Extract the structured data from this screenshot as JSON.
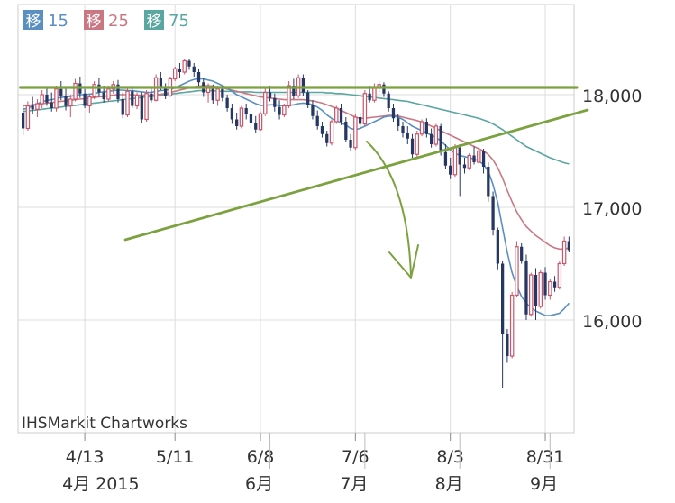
{
  "chart_data": {
    "type": "candlestick",
    "title": "",
    "watermark": "IHSMarkit Chartworks",
    "legend": [
      {
        "badge": "移",
        "label": "15",
        "color": "#5a8fc2"
      },
      {
        "badge": "移",
        "label": "25",
        "color": "#c97883"
      },
      {
        "badge": "移",
        "label": "75",
        "color": "#5aa6a0"
      }
    ],
    "colors": {
      "up": "#c9556a",
      "down": "#263764",
      "ma15": "#5a8fc2",
      "ma25": "#c97883",
      "ma75": "#5aa6a0",
      "annotation": "#7ba23f",
      "grid": "#dddddd"
    },
    "y_axis": {
      "position": "right",
      "ylim": [
        15000,
        18800
      ],
      "ticks": [
        16000,
        17000,
        18000
      ],
      "tick_labels": [
        "16,000",
        "17,000",
        "18,000"
      ]
    },
    "x_axis": {
      "ticks": [
        {
          "index": 13,
          "date": "4/13",
          "month": "4月 2015"
        },
        {
          "index": 32,
          "date": "5/11",
          "month": ""
        },
        {
          "index": 50,
          "date": "6/8",
          "month": "6月"
        },
        {
          "index": 70,
          "date": "7/6",
          "month": "7月"
        },
        {
          "index": 90,
          "date": "8/3",
          "month": "8月"
        },
        {
          "index": 110,
          "date": "8/31",
          "month": "9月"
        }
      ],
      "month_separators": [
        52,
        72,
        92,
        111
      ]
    },
    "candles": [
      [
        17840,
        17900,
        17640,
        17700
      ],
      [
        17700,
        17940,
        17680,
        17900
      ],
      [
        17900,
        17980,
        17830,
        17870
      ],
      [
        17870,
        17960,
        17800,
        17920
      ],
      [
        17920,
        18040,
        17880,
        18000
      ],
      [
        18000,
        18060,
        17900,
        17930
      ],
      [
        17930,
        18020,
        17850,
        17880
      ],
      [
        17880,
        18080,
        17850,
        18050
      ],
      [
        18050,
        18120,
        17950,
        17990
      ],
      [
        17990,
        18060,
        17860,
        17900
      ],
      [
        17900,
        18000,
        17800,
        17960
      ],
      [
        17960,
        18140,
        17940,
        18100
      ],
      [
        18100,
        18160,
        17970,
        18010
      ],
      [
        18010,
        18050,
        17880,
        17900
      ],
      [
        17900,
        18000,
        17840,
        17980
      ],
      [
        17980,
        18120,
        17960,
        18090
      ],
      [
        18090,
        18150,
        17980,
        18020
      ],
      [
        18020,
        18080,
        17930,
        17960
      ],
      [
        17960,
        18080,
        17940,
        18050
      ],
      [
        18050,
        18120,
        18010,
        18090
      ],
      [
        18090,
        18130,
        17930,
        17960
      ],
      [
        17960,
        18020,
        17790,
        17820
      ],
      [
        17820,
        18060,
        17800,
        18030
      ],
      [
        18030,
        18080,
        17880,
        17900
      ],
      [
        17900,
        18020,
        17870,
        17990
      ],
      [
        17990,
        18020,
        17750,
        17780
      ],
      [
        17780,
        18040,
        17760,
        18010
      ],
      [
        18010,
        18070,
        17930,
        17950
      ],
      [
        17950,
        18180,
        17940,
        18150
      ],
      [
        18150,
        18200,
        18040,
        18060
      ],
      [
        18060,
        18100,
        17960,
        17990
      ],
      [
        17990,
        18160,
        17980,
        18140
      ],
      [
        18140,
        18250,
        18120,
        18230
      ],
      [
        18230,
        18280,
        18150,
        18200
      ],
      [
        18200,
        18320,
        18180,
        18300
      ],
      [
        18300,
        18320,
        18220,
        18250
      ],
      [
        18250,
        18280,
        18160,
        18200
      ],
      [
        18200,
        18230,
        18080,
        18110
      ],
      [
        18110,
        18150,
        17980,
        18020
      ],
      [
        18020,
        18100,
        17930,
        18060
      ],
      [
        18060,
        18090,
        17920,
        17950
      ],
      [
        17950,
        18080,
        17900,
        18050
      ],
      [
        18050,
        18080,
        17940,
        17970
      ],
      [
        17970,
        18000,
        17850,
        17880
      ],
      [
        17880,
        17920,
        17740,
        17780
      ],
      [
        17780,
        17840,
        17690,
        17720
      ],
      [
        17720,
        17900,
        17700,
        17880
      ],
      [
        17880,
        17920,
        17780,
        17830
      ],
      [
        17830,
        17880,
        17700,
        17750
      ],
      [
        17750,
        17810,
        17660,
        17690
      ],
      [
        17690,
        17850,
        17680,
        17830
      ],
      [
        17830,
        18060,
        17810,
        18020
      ],
      [
        18020,
        18080,
        17940,
        17970
      ],
      [
        17970,
        18010,
        17850,
        17890
      ],
      [
        17890,
        17950,
        17780,
        17820
      ],
      [
        17820,
        17920,
        17800,
        17900
      ],
      [
        17900,
        18120,
        17880,
        18080
      ],
      [
        18080,
        18140,
        17960,
        17990
      ],
      [
        17990,
        18180,
        17970,
        18150
      ],
      [
        18150,
        18180,
        17990,
        18020
      ],
      [
        18020,
        18040,
        17880,
        17910
      ],
      [
        17910,
        17950,
        17780,
        17810
      ],
      [
        17810,
        17860,
        17690,
        17720
      ],
      [
        17720,
        17760,
        17620,
        17650
      ],
      [
        17650,
        17680,
        17540,
        17570
      ],
      [
        17570,
        17780,
        17550,
        17760
      ],
      [
        17760,
        17900,
        17740,
        17880
      ],
      [
        17880,
        17920,
        17730,
        17760
      ],
      [
        17760,
        17800,
        17580,
        17600
      ],
      [
        17600,
        17650,
        17500,
        17530
      ],
      [
        17530,
        17830,
        17510,
        17800
      ],
      [
        17800,
        17840,
        17700,
        17740
      ],
      [
        17740,
        18040,
        17720,
        18010
      ],
      [
        18010,
        18080,
        17930,
        17950
      ],
      [
        17950,
        18100,
        17930,
        18070
      ],
      [
        18070,
        18120,
        18020,
        18090
      ],
      [
        18090,
        18110,
        17980,
        18010
      ],
      [
        18010,
        18030,
        17850,
        17880
      ],
      [
        17880,
        17920,
        17760,
        17790
      ],
      [
        17790,
        17830,
        17680,
        17720
      ],
      [
        17720,
        17760,
        17620,
        17660
      ],
      [
        17660,
        17720,
        17560,
        17610
      ],
      [
        17610,
        17650,
        17440,
        17470
      ],
      [
        17470,
        17680,
        17450,
        17650
      ],
      [
        17650,
        17780,
        17630,
        17760
      ],
      [
        17760,
        17790,
        17620,
        17650
      ],
      [
        17650,
        17700,
        17530,
        17560
      ],
      [
        17560,
        17740,
        17540,
        17720
      ],
      [
        17720,
        17740,
        17460,
        17490
      ],
      [
        17490,
        17560,
        17340,
        17370
      ],
      [
        17370,
        17440,
        17250,
        17290
      ],
      [
        17290,
        17560,
        17270,
        17530
      ],
      [
        17530,
        17560,
        17100,
        17380
      ],
      [
        17380,
        17440,
        17300,
        17350
      ],
      [
        17350,
        17480,
        17330,
        17460
      ],
      [
        17460,
        17540,
        17380,
        17400
      ],
      [
        17400,
        17530,
        17380,
        17500
      ],
      [
        17500,
        17520,
        17300,
        17360
      ],
      [
        17360,
        17400,
        17050,
        17100
      ],
      [
        17100,
        17140,
        16750,
        16800
      ],
      [
        16800,
        16820,
        16450,
        16500
      ],
      [
        16500,
        16520,
        15400,
        15880
      ],
      [
        15880,
        15920,
        15620,
        15680
      ],
      [
        15680,
        16250,
        15660,
        16220
      ],
      [
        16220,
        16700,
        16200,
        16650
      ],
      [
        16650,
        16680,
        16500,
        16520
      ],
      [
        16520,
        16580,
        16000,
        16050
      ],
      [
        16050,
        16420,
        16030,
        16400
      ],
      [
        16400,
        16460,
        16000,
        16120
      ],
      [
        16120,
        16440,
        16100,
        16420
      ],
      [
        16420,
        16470,
        16180,
        16220
      ],
      [
        16220,
        16360,
        16180,
        16340
      ],
      [
        16340,
        16390,
        16250,
        16290
      ],
      [
        16290,
        16520,
        16270,
        16500
      ],
      [
        16500,
        16740,
        16480,
        16700
      ],
      [
        16700,
        16740,
        16600,
        16620
      ]
    ],
    "ma15": [
      17870,
      17880,
      17900,
      17920,
      17935,
      17950,
      17955,
      17965,
      17975,
      17980,
      17985,
      17995,
      18000,
      18000,
      18005,
      18010,
      18020,
      18025,
      18030,
      18035,
      18040,
      18040,
      18035,
      18035,
      18030,
      18025,
      18020,
      18020,
      18030,
      18035,
      18040,
      18045,
      18060,
      18080,
      18100,
      18120,
      18135,
      18140,
      18140,
      18130,
      18120,
      18100,
      18080,
      18060,
      18030,
      18000,
      17980,
      17960,
      17940,
      17920,
      17905,
      17905,
      17910,
      17910,
      17905,
      17900,
      17905,
      17910,
      17920,
      17925,
      17920,
      17910,
      17890,
      17860,
      17820,
      17790,
      17770,
      17750,
      17730,
      17700,
      17690,
      17700,
      17720,
      17740,
      17760,
      17780,
      17800,
      17810,
      17810,
      17800,
      17780,
      17750,
      17720,
      17700,
      17680,
      17660,
      17640,
      17620,
      17590,
      17550,
      17510,
      17480,
      17460,
      17450,
      17440,
      17430,
      17410,
      17380,
      17320,
      17200,
      17040,
      16820,
      16600,
      16420,
      16300,
      16210,
      16150,
      16110,
      16080,
      16060,
      16040,
      16040,
      16050,
      16060,
      16100,
      16150
    ],
    "ma25": [
      17900,
      17905,
      17910,
      17915,
      17920,
      17925,
      17930,
      17935,
      17940,
      17945,
      17950,
      17955,
      17960,
      17965,
      17970,
      17975,
      17980,
      17985,
      17990,
      17995,
      18000,
      18000,
      18000,
      18000,
      17995,
      17995,
      17995,
      17995,
      18000,
      18005,
      18010,
      18020,
      18030,
      18040,
      18050,
      18060,
      18070,
      18075,
      18080,
      18080,
      18075,
      18070,
      18060,
      18050,
      18040,
      18030,
      18020,
      18010,
      18000,
      17990,
      17980,
      17975,
      17970,
      17965,
      17960,
      17955,
      17955,
      17955,
      17955,
      17955,
      17950,
      17945,
      17935,
      17925,
      17910,
      17895,
      17880,
      17860,
      17840,
      17820,
      17800,
      17790,
      17790,
      17795,
      17800,
      17805,
      17810,
      17815,
      17815,
      17810,
      17800,
      17790,
      17780,
      17770,
      17755,
      17740,
      17720,
      17700,
      17680,
      17660,
      17640,
      17620,
      17600,
      17580,
      17560,
      17540,
      17520,
      17500,
      17470,
      17420,
      17350,
      17260,
      17150,
      17050,
      16960,
      16890,
      16830,
      16790,
      16750,
      16720,
      16690,
      16660,
      16640,
      16630,
      16630,
      16640
    ],
    "ma75": [
      17850,
      17855,
      17860,
      17865,
      17870,
      17875,
      17880,
      17885,
      17890,
      17895,
      17900,
      17905,
      17910,
      17915,
      17920,
      17925,
      17930,
      17935,
      17940,
      17945,
      17950,
      17955,
      17960,
      17965,
      17970,
      17975,
      17980,
      17985,
      17990,
      17995,
      18000,
      18005,
      18010,
      18015,
      18020,
      18025,
      18030,
      18035,
      18035,
      18035,
      18035,
      18030,
      18030,
      18030,
      18030,
      18025,
      18025,
      18025,
      18025,
      18020,
      18020,
      18020,
      18020,
      18020,
      18020,
      18020,
      18020,
      18020,
      18020,
      18020,
      18020,
      18020,
      18020,
      18020,
      18015,
      18015,
      18010,
      18010,
      18005,
      18000,
      17995,
      17990,
      17985,
      17980,
      17975,
      17970,
      17965,
      17960,
      17955,
      17950,
      17945,
      17940,
      17930,
      17920,
      17910,
      17900,
      17890,
      17880,
      17870,
      17860,
      17850,
      17840,
      17830,
      17820,
      17810,
      17800,
      17790,
      17775,
      17760,
      17740,
      17715,
      17690,
      17660,
      17630,
      17600,
      17570,
      17540,
      17520,
      17500,
      17480,
      17460,
      17440,
      17425,
      17410,
      17395,
      17385
    ]
  }
}
